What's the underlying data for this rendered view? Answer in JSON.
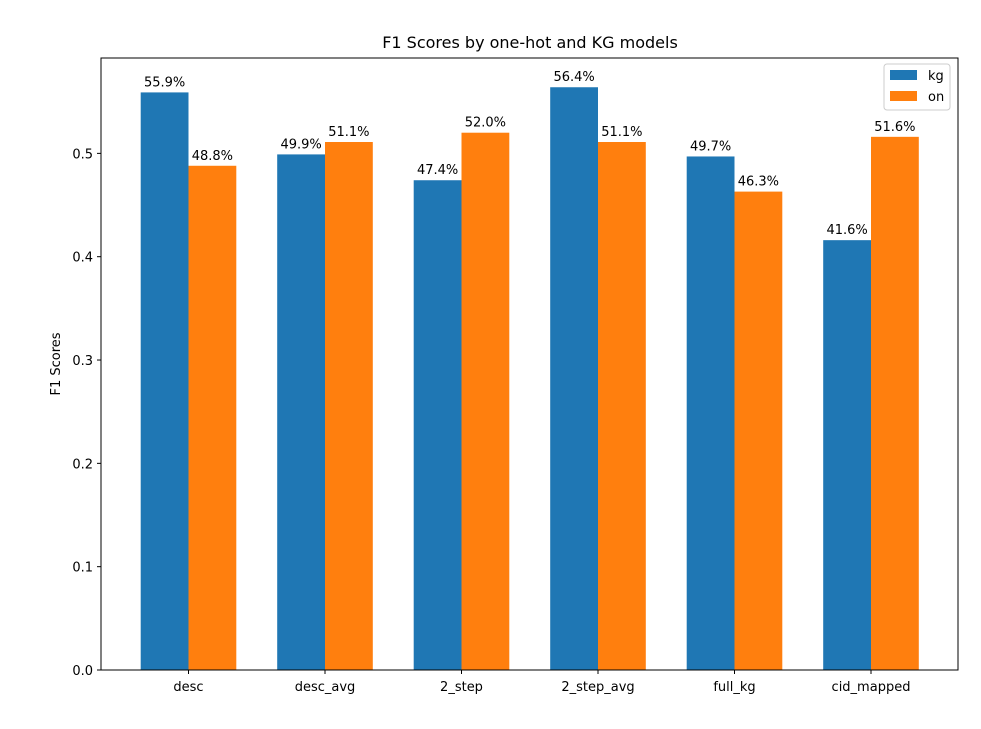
{
  "chart_data": {
    "type": "bar",
    "title": "F1 Scores by one-hot and KG models",
    "xlabel": "",
    "ylabel": "F1 Scores",
    "categories": [
      "desc",
      "desc_avg",
      "2_step",
      "2_step_avg",
      "full_kg",
      "cid_mapped"
    ],
    "series": [
      {
        "name": "kg",
        "color": "#1f77b4",
        "values": [
          0.559,
          0.499,
          0.474,
          0.564,
          0.497,
          0.416
        ],
        "labels": [
          "55.9%",
          "49.9%",
          "47.4%",
          "56.4%",
          "49.7%",
          "41.6%"
        ]
      },
      {
        "name": "on",
        "color": "#ff7f0e",
        "values": [
          0.488,
          0.511,
          0.52,
          0.511,
          0.463,
          0.516
        ],
        "labels": [
          "48.8%",
          "51.1%",
          "52.0%",
          "51.1%",
          "46.3%",
          "51.6%"
        ]
      }
    ],
    "ylim": [
      0,
      0.5923
    ],
    "yticks": [
      0.0,
      0.1,
      0.2,
      0.3,
      0.4,
      0.5
    ],
    "ytick_labels": [
      "0.0",
      "0.1",
      "0.2",
      "0.3",
      "0.4",
      "0.5"
    ],
    "grid": false,
    "legend_position": "top-right"
  }
}
